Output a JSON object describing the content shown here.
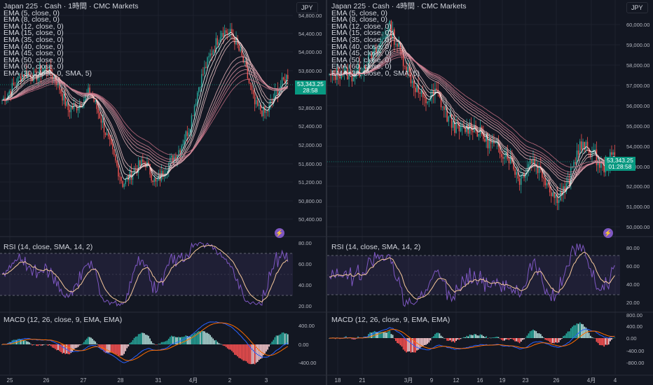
{
  "charts": [
    {
      "title": "Japan 225 · Cash · 1時間 · CMC Markets",
      "currency": "JPY",
      "last_price": "53,343.25",
      "countdown": "28:58",
      "price_axis": {
        "min": 50000,
        "max": 54800,
        "ticks": [
          "54,800.00",
          "54,400.00",
          "54,000.00",
          "53,600.00",
          "53,200.00",
          "52,800.00",
          "52,400.00",
          "52,000.00",
          "51,600.00",
          "51,200.00",
          "50,800.00",
          "50,400.00"
        ]
      },
      "x_labels": [
        "25",
        "26",
        "27",
        "28",
        "31",
        "4月",
        "2",
        "3"
      ],
      "ema_legend": [
        "EMA (5, close, 0)",
        "EMA (8, close, 0)",
        "EMA (12, close, 0)",
        "EMA (15, close, 0)",
        "EMA (35, close, 0)",
        "EMA (40, close, 0)",
        "EMA (45, close, 0)",
        "EMA (50, close, 0)",
        "EMA (60, close, 0)",
        "EMA (30, close, 0, SMA, 5)"
      ],
      "rsi": {
        "label": "RSI (14, close, SMA, 14, 2)",
        "ticks": [
          "80.00",
          "60.00",
          "40.00",
          "20.00"
        ]
      },
      "macd": {
        "label": "MACD (12, 26, close, 9, EMA, EMA)",
        "ticks": [
          "400.00",
          "0.00",
          "-400.00"
        ]
      },
      "chart_data": {
        "type": "candlestick",
        "x": [
          "25",
          "26",
          "27",
          "28",
          "31",
          "4月",
          "2",
          "3"
        ],
        "close_path": [
          52800,
          53100,
          53400,
          53300,
          53500,
          53200,
          52600,
          52700,
          53000,
          52400,
          51700,
          51000,
          51300,
          51500,
          51000,
          51400,
          51700,
          52200,
          53200,
          53800,
          54300,
          54200,
          53600,
          52700,
          52500,
          53000,
          53343
        ],
        "ylim": [
          50000,
          54800
        ]
      }
    },
    {
      "title": "Japan 225 · Cash · 4時間 · CMC Markets",
      "currency": "JPY",
      "last_price": "53,343.25",
      "countdown": "01:28:58",
      "price_axis": {
        "min": 49600,
        "max": 60400,
        "ticks": [
          "60,000.00",
          "59,000.00",
          "58,000.00",
          "57,000.00",
          "56,000.00",
          "55,000.00",
          "54,000.00",
          "53,000.00",
          "52,000.00",
          "51,000.00",
          "50,000.00"
        ]
      },
      "x_labels": [
        "18",
        "21",
        "3月",
        "9",
        "12",
        "16",
        "19",
        "23",
        "26",
        "4月",
        "4"
      ],
      "ema_legend": [
        "EMA (5, close, 0)",
        "EMA (8, close, 0)",
        "EMA (12, close, 0)",
        "EMA (15, close, 0)",
        "EMA (35, close, 0)",
        "EMA (40, close, 0)",
        "EMA (45, close, 0)",
        "EMA (50, close, 0)",
        "EMA (60, close, 0)",
        "EMA (30, close, 0, SMA, 5)"
      ],
      "rsi": {
        "label": "RSI (14, close, SMA, 14, 2)",
        "ticks": [
          "80.00",
          "60.00",
          "40.00",
          "20.00"
        ]
      },
      "macd": {
        "label": "MACD (12, 26, close, 9, EMA, EMA)",
        "ticks": [
          "800.00",
          "400.00",
          "0.00",
          "-400.00",
          "-800.00"
        ]
      },
      "chart_data": {
        "type": "candlestick",
        "x": [
          "18",
          "21",
          "3月",
          "9",
          "12",
          "16",
          "19",
          "23",
          "26",
          "4月",
          "4"
        ],
        "close_path": [
          57000,
          57300,
          57100,
          57600,
          58300,
          59500,
          58200,
          56800,
          55800,
          56300,
          55000,
          54400,
          54700,
          54100,
          53600,
          53300,
          52100,
          53100,
          52300,
          51200,
          51700,
          53700,
          53500,
          52600,
          53343
        ],
        "ylim": [
          49600,
          60400
        ]
      }
    }
  ]
}
